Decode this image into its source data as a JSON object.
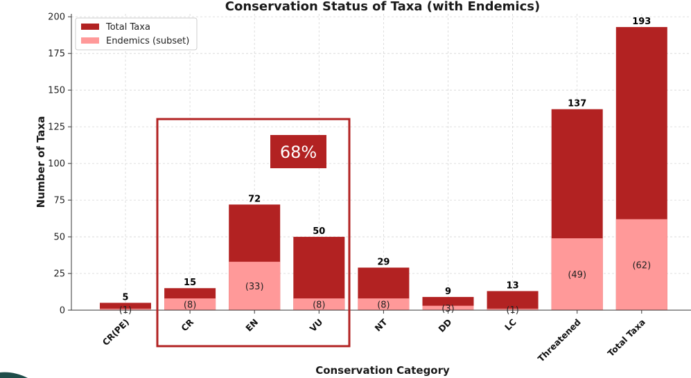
{
  "chart_data": {
    "type": "bar",
    "stacked_overlay": true,
    "title": "Conservation Status of Taxa (with Endemics)",
    "xlabel": "Conservation Category",
    "ylabel": "Number of Taxa",
    "ylim": [
      0,
      202
    ],
    "yticks": [
      0,
      25,
      50,
      75,
      100,
      125,
      150,
      175,
      200
    ],
    "grid": true,
    "legend_position": "top-left",
    "categories": [
      "CR(PE)",
      "CR",
      "EN",
      "VU",
      "NT",
      "DD",
      "LC",
      "Threatened",
      "Total Taxa"
    ],
    "series": [
      {
        "name": "Total Taxa",
        "values": [
          5,
          15,
          72,
          50,
          29,
          9,
          13,
          137,
          193
        ],
        "color": "#b22222"
      },
      {
        "name": "Endemics (subset)",
        "values": [
          1,
          8,
          33,
          8,
          8,
          3,
          1,
          49,
          62
        ],
        "color": "#ff9999"
      }
    ],
    "total_labels": [
      "5",
      "15",
      "72",
      "50",
      "29",
      "9",
      "13",
      "137",
      "193"
    ],
    "endemic_labels": [
      "(1)",
      "(8)",
      "(33)",
      "(8)",
      "(8)",
      "(3)",
      "(1)",
      "(49)",
      "(62)"
    ],
    "annotation": {
      "text": "68%",
      "highlighted_categories": [
        "CR",
        "EN",
        "VU"
      ],
      "color": "#b22222"
    }
  }
}
